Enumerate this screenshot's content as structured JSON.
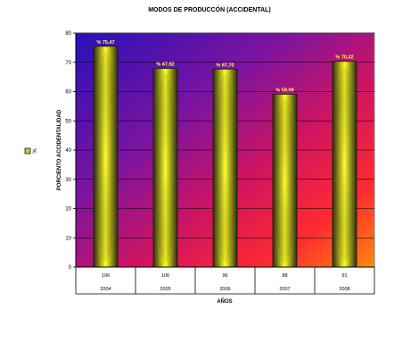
{
  "chart_data": {
    "type": "bar",
    "title": "MODOS DE PRODUCCÓN (ACCIDENTAL)",
    "xlabel": "AÑOS",
    "ylabel": "PORCIENTO ACCIDENTALIDAD",
    "legend": {
      "label": "%",
      "placement": "left"
    },
    "ylim": [
      0,
      80
    ],
    "yticks": [
      0,
      10,
      20,
      30,
      40,
      50,
      60,
      70,
      80
    ],
    "grid": true,
    "categories": [
      "2004",
      "2005",
      "2006",
      "2007",
      "2008"
    ],
    "counts": [
      "106",
      "106",
      "96",
      "88",
      "91"
    ],
    "values": [
      75.47,
      67.92,
      67.7,
      59.09,
      70.32
    ],
    "data_labels": [
      "% 75,47",
      "% 67,92",
      "% 67,70",
      "% 59,09",
      "% 70,32"
    ],
    "colors": {
      "background_top": "#2a14b4",
      "background_mid": "#e0144e",
      "background_bottom": "#ff7a1a",
      "bar_edge": "#2b2b10",
      "bar_center": "#ffff1e",
      "label": "#ffff66"
    }
  }
}
